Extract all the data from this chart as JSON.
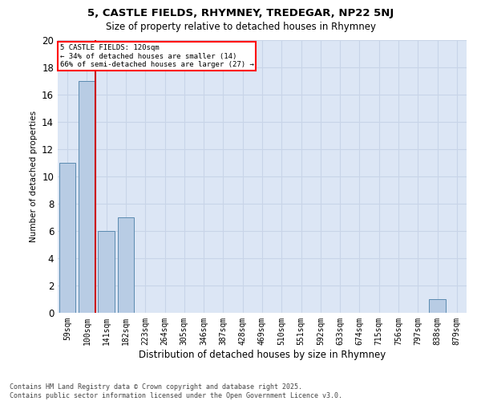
{
  "title_line1": "5, CASTLE FIELDS, RHYMNEY, TREDEGAR, NP22 5NJ",
  "title_line2": "Size of property relative to detached houses in Rhymney",
  "xlabel": "Distribution of detached houses by size in Rhymney",
  "ylabel": "Number of detached properties",
  "categories": [
    "59sqm",
    "100sqm",
    "141sqm",
    "182sqm",
    "223sqm",
    "264sqm",
    "305sqm",
    "346sqm",
    "387sqm",
    "428sqm",
    "469sqm",
    "510sqm",
    "551sqm",
    "592sqm",
    "633sqm",
    "674sqm",
    "715sqm",
    "756sqm",
    "797sqm",
    "838sqm",
    "879sqm"
  ],
  "values": [
    11,
    17,
    6,
    7,
    0,
    0,
    0,
    0,
    0,
    0,
    0,
    0,
    0,
    0,
    0,
    0,
    0,
    0,
    0,
    1,
    0
  ],
  "bar_color": "#b8cce4",
  "bar_edge_color": "#5a8ab0",
  "annotation_line1": "5 CASTLE FIELDS: 120sqm",
  "annotation_line2": "← 34% of detached houses are smaller (14)",
  "annotation_line3": "66% of semi-detached houses are larger (27) →",
  "vline_color": "#cc0000",
  "ylim": [
    0,
    20
  ],
  "yticks": [
    0,
    2,
    4,
    6,
    8,
    10,
    12,
    14,
    16,
    18,
    20
  ],
  "grid_color": "#c8d4e8",
  "background_color": "#dce6f5",
  "footnote_line1": "Contains HM Land Registry data © Crown copyright and database right 2025.",
  "footnote_line2": "Contains public sector information licensed under the Open Government Licence v3.0."
}
